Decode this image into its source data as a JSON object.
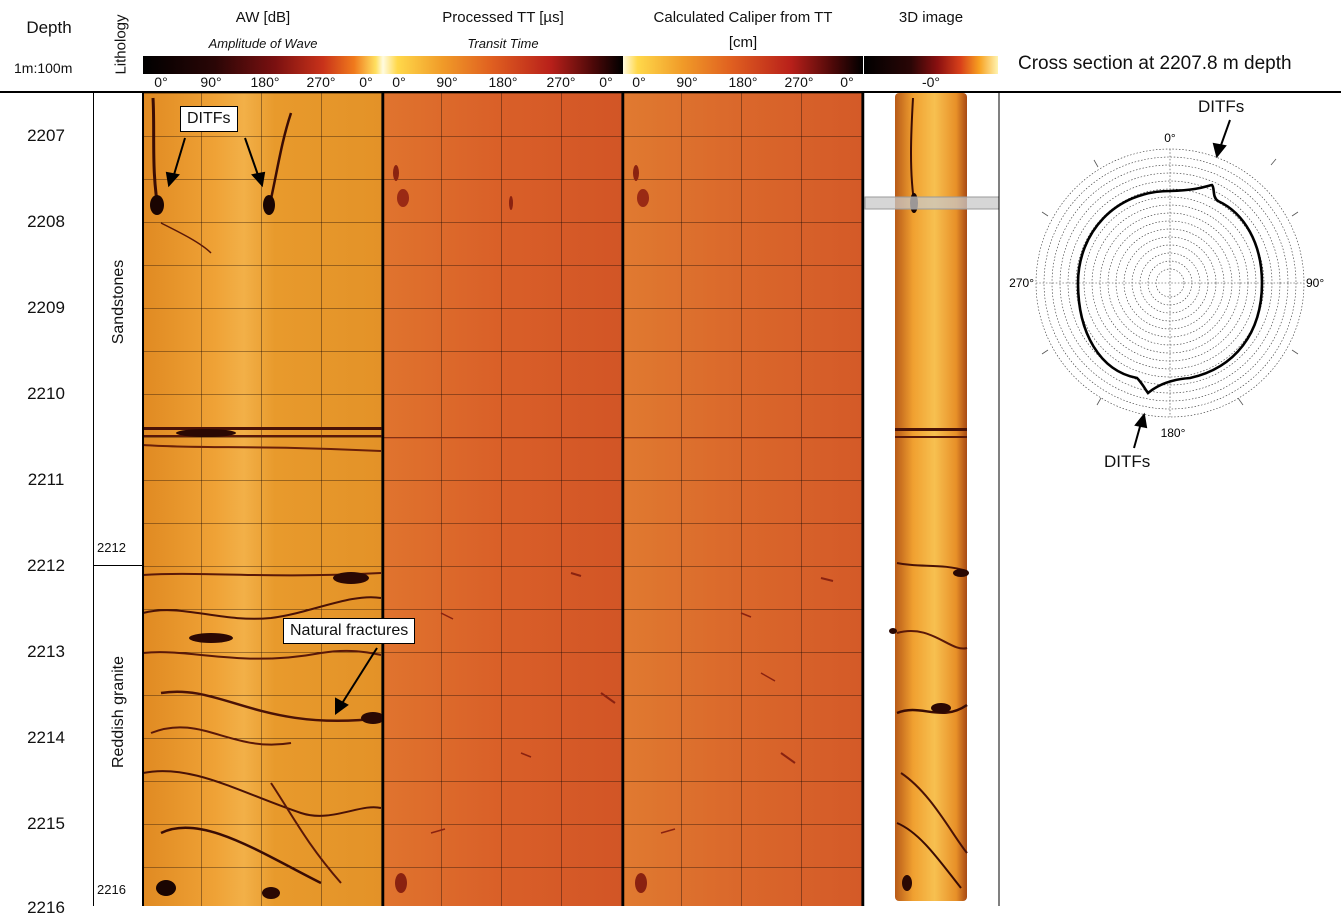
{
  "header": {
    "depth_title": "Depth",
    "scale": "1m:100m",
    "lithology_title": "Lithology",
    "tracks": [
      {
        "title": "AW [dB]",
        "subtitle": "Amplitude of Wave"
      },
      {
        "title": "Processed TT [µs]",
        "subtitle": "Transit Time"
      },
      {
        "title": "Calculated Caliper from TT",
        "subtitle": "[cm]"
      },
      {
        "title": "3D image",
        "subtitle": ""
      }
    ],
    "azimuth_ticks": [
      "0°",
      "90°",
      "180°",
      "270°",
      "0°"
    ],
    "image_tick": "-0°",
    "cross_section_title": "Cross section at 2207.8 m depth"
  },
  "depths": [
    "2207",
    "2208",
    "2209",
    "2210",
    "2211",
    "2212",
    "2213",
    "2214",
    "2215"
  ],
  "depth_cutoff": "2216",
  "lithology": {
    "upper": "Sandstones",
    "lower": "Reddish granite",
    "boundary_label": "2212",
    "bottom_label": "2216"
  },
  "annotations": {
    "ditfs": "DITFs",
    "natural_fractures": "Natural fractures"
  },
  "cross_section": {
    "top": "0°",
    "right": "90°",
    "bottom": "180°",
    "left": "270°",
    "ditfs_top": "DITFs",
    "ditfs_bottom": "DITFs"
  },
  "colors": {
    "aw_track": "#E59A28",
    "tt_track": "#D8602A",
    "caliper_track": "#D56A2B",
    "image_track": "#F0A030",
    "fracture": "#3a0c04",
    "colorbar_stops": [
      "#000000",
      "#4a0808",
      "#b8201a",
      "#e06a1a",
      "#ffd84a",
      "#fffbe0"
    ]
  }
}
